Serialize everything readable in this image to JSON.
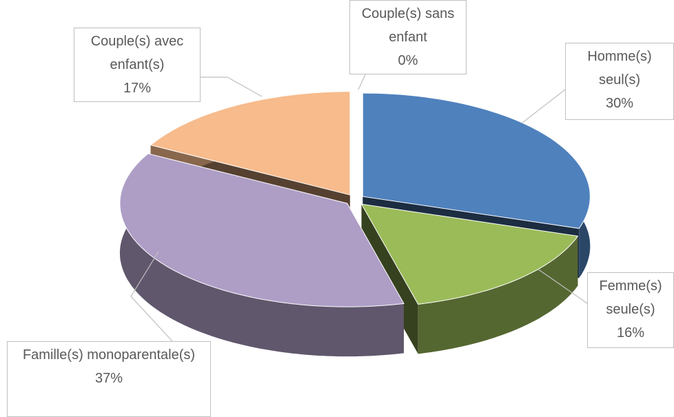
{
  "chart_data": {
    "type": "pie3d",
    "categories": [
      "Homme(s) seul(s)",
      "Femme(s) seule(s)",
      "Famille(s) monoparentale(s)",
      "Couple(s) avec enfant(s)",
      "Couple(s) sans enfant"
    ],
    "values": [
      30,
      16,
      37,
      17,
      0
    ],
    "value_labels": [
      "30%",
      "16%",
      "37%",
      "17%",
      "0%"
    ],
    "colors": [
      "#4f81bd",
      "#9bbb59",
      "#ae9ec6",
      "#f7bb8c",
      "#4bacc6"
    ]
  }
}
